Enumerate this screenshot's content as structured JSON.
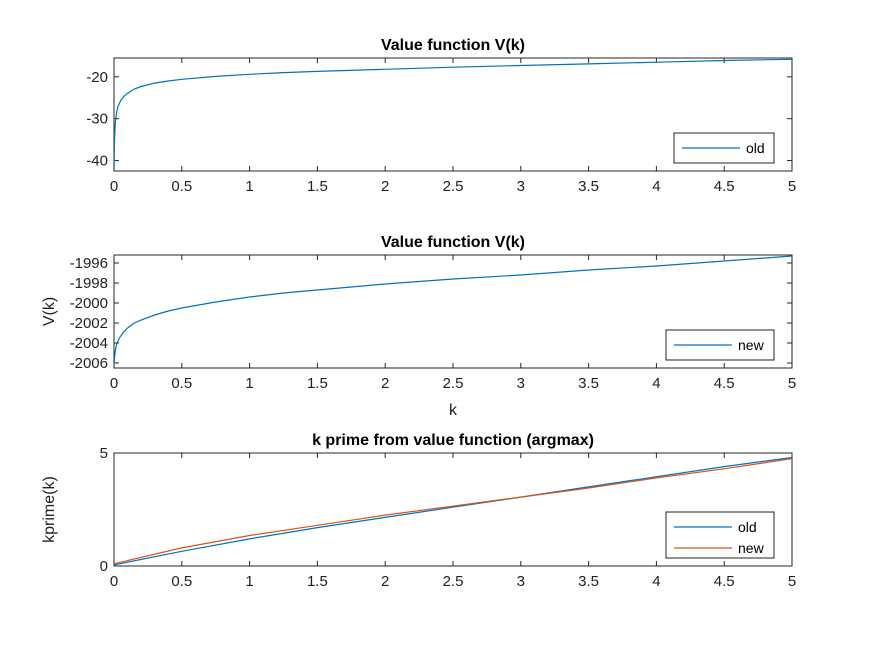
{
  "chart_data": [
    {
      "type": "line",
      "title": "Value function V(k)",
      "xlabel": "",
      "ylabel": "",
      "xlim": [
        0,
        5
      ],
      "ylim": [
        -42.5,
        -15.5
      ],
      "xticks": [
        0,
        0.5,
        1,
        1.5,
        2,
        2.5,
        3,
        3.5,
        4,
        4.5,
        5
      ],
      "yticks": [
        -40,
        -30,
        -20
      ],
      "xtick_labels": [
        "0",
        "0.5",
        "1",
        "1.5",
        "2",
        "2.5",
        "3",
        "3.5",
        "4",
        "4.5",
        "5"
      ],
      "ytick_labels": [
        "-40",
        "-30",
        "-20"
      ],
      "legend_position": "bottom-right",
      "series": [
        {
          "name": "old",
          "color": "#0072BD",
          "x": [
            0.001,
            0.003,
            0.006,
            0.01,
            0.02,
            0.03,
            0.05,
            0.075,
            0.1,
            0.15,
            0.2,
            0.3,
            0.4,
            0.5,
            0.75,
            1,
            1.25,
            1.5,
            2,
            2.5,
            3,
            3.5,
            4,
            4.5,
            5
          ],
          "y": [
            -42.5,
            -36.5,
            -33.2,
            -30.8,
            -28.4,
            -27.0,
            -25.6,
            -24.6,
            -23.9,
            -22.9,
            -22.3,
            -21.5,
            -21.0,
            -20.6,
            -19.9,
            -19.4,
            -19.0,
            -18.7,
            -18.2,
            -17.7,
            -17.3,
            -16.9,
            -16.5,
            -16.1,
            -15.8
          ]
        }
      ]
    },
    {
      "type": "line",
      "title": "Value function V(k)",
      "xlabel": "k",
      "ylabel": "V(k)",
      "xlim": [
        0,
        5
      ],
      "ylim": [
        -2006.5,
        -1995.2
      ],
      "xticks": [
        0,
        0.5,
        1,
        1.5,
        2,
        2.5,
        3,
        3.5,
        4,
        4.5,
        5
      ],
      "yticks": [
        -2006,
        -2004,
        -2002,
        -2000,
        -1998,
        -1996
      ],
      "xtick_labels": [
        "0",
        "0.5",
        "1",
        "1.5",
        "2",
        "2.5",
        "3",
        "3.5",
        "4",
        "4.5",
        "5"
      ],
      "ytick_labels": [
        "-2006",
        "-2004",
        "-2002",
        "-2000",
        "-1998",
        "-1996"
      ],
      "legend_position": "bottom-right",
      "series": [
        {
          "name": "new",
          "color": "#0072BD",
          "x": [
            0.001,
            0.005,
            0.01,
            0.02,
            0.04,
            0.07,
            0.1,
            0.15,
            0.2,
            0.3,
            0.4,
            0.5,
            0.75,
            1,
            1.25,
            1.5,
            2,
            2.5,
            3,
            3.5,
            4,
            4.5,
            5
          ],
          "y": [
            -2006.3,
            -2005.3,
            -2004.7,
            -2004.1,
            -2003.5,
            -2002.9,
            -2002.5,
            -2002.0,
            -2001.7,
            -2001.2,
            -2000.8,
            -2000.5,
            -1999.9,
            -1999.4,
            -1999.0,
            -1998.7,
            -1998.1,
            -1997.6,
            -1997.2,
            -1996.7,
            -1996.3,
            -1995.8,
            -1995.3
          ]
        }
      ]
    },
    {
      "type": "line",
      "title": "k prime from value function (argmax)",
      "xlabel": "",
      "ylabel": "kprime(k)",
      "xlim": [
        0,
        5
      ],
      "ylim": [
        0,
        5
      ],
      "xticks": [
        0,
        0.5,
        1,
        1.5,
        2,
        2.5,
        3,
        3.5,
        4,
        4.5,
        5
      ],
      "yticks": [
        0,
        5
      ],
      "xtick_labels": [
        "0",
        "0.5",
        "1",
        "1.5",
        "2",
        "2.5",
        "3",
        "3.5",
        "4",
        "4.5",
        "5"
      ],
      "ytick_labels": [
        "0",
        "5"
      ],
      "legend_position": "bottom-right",
      "series": [
        {
          "name": "old",
          "color": "#0072BD",
          "x": [
            0,
            0.5,
            1,
            1.5,
            2,
            2.5,
            3,
            3.5,
            4,
            4.5,
            5
          ],
          "y": [
            0.05,
            0.65,
            1.2,
            1.7,
            2.15,
            2.6,
            3.05,
            3.5,
            3.95,
            4.4,
            4.8
          ]
        },
        {
          "name": "new",
          "color": "#D95319",
          "x": [
            0,
            0.5,
            1,
            1.5,
            2,
            2.5,
            3,
            3.5,
            4,
            4.5,
            5
          ],
          "y": [
            0.1,
            0.8,
            1.35,
            1.8,
            2.25,
            2.65,
            3.05,
            3.45,
            3.9,
            4.3,
            4.75
          ]
        }
      ]
    }
  ]
}
